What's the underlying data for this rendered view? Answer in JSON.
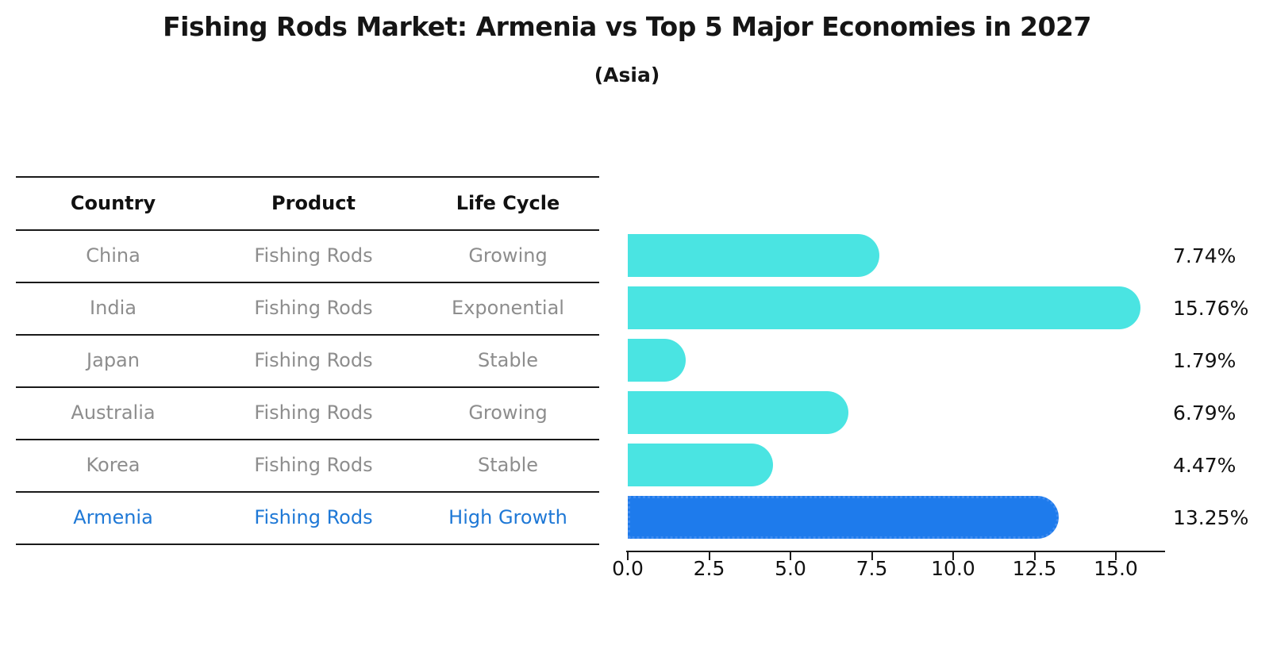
{
  "title": "Fishing Rods Market: Armenia vs Top 5 Major Economies in 2027",
  "subtitle": "(Asia)",
  "table": {
    "headers": [
      "Country",
      "Product",
      "Life Cycle"
    ],
    "rows": [
      {
        "country": "China",
        "product": "Fishing Rods",
        "life_cycle": "Growing",
        "highlight": false
      },
      {
        "country": "India",
        "product": "Fishing Rods",
        "life_cycle": "Exponential",
        "highlight": false
      },
      {
        "country": "Japan",
        "product": "Fishing Rods",
        "life_cycle": "Stable",
        "highlight": false
      },
      {
        "country": "Australia",
        "product": "Fishing Rods",
        "life_cycle": "Growing",
        "highlight": false
      },
      {
        "country": "Korea",
        "product": "Fishing Rods",
        "life_cycle": "Stable",
        "highlight": false
      },
      {
        "country": "Armenia",
        "product": "Fishing Rods",
        "life_cycle": "High Growth",
        "highlight": true
      }
    ]
  },
  "chart_data": {
    "type": "bar",
    "orientation": "horizontal",
    "title": "Fishing Rods Market: Armenia vs Top 5 Major Economies in 2027",
    "subtitle": "(Asia)",
    "categories": [
      "China",
      "India",
      "Japan",
      "Australia",
      "Korea",
      "Armenia"
    ],
    "values": [
      7.74,
      15.76,
      1.79,
      6.79,
      4.47,
      13.25
    ],
    "value_labels": [
      "7.74%",
      "15.76%",
      "1.79%",
      "6.79%",
      "4.47%",
      "13.25%"
    ],
    "highlight_index": 5,
    "x_tick_labels": [
      "0.0",
      "2.5",
      "5.0",
      "7.5",
      "10.0",
      "12.5",
      "15.0"
    ],
    "x_tick_values": [
      0,
      2.5,
      5,
      7.5,
      10,
      12.5,
      15
    ],
    "xlim": [
      0,
      16.5
    ],
    "grid": false,
    "legend": "none",
    "colors": {
      "bar_default": "#4ae4e2",
      "bar_highlight": "#1e7bec",
      "bar_highlight_border": "#3f8cf0",
      "table_text": "#8d8d8d",
      "highlight_text": "#1e78d6",
      "axis_text": "#111111"
    }
  }
}
